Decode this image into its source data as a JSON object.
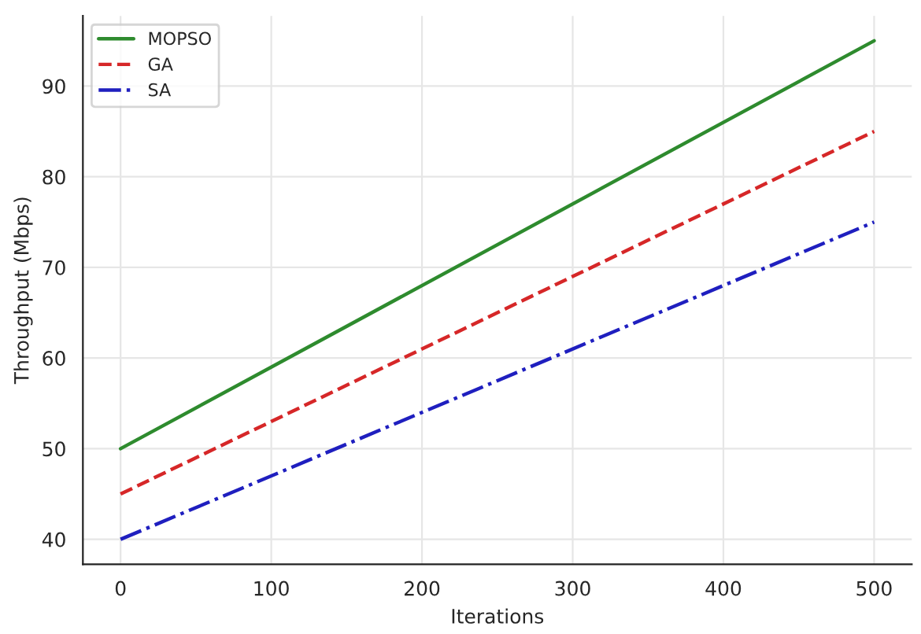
{
  "chart_data": {
    "type": "line",
    "xlabel": "Iterations",
    "ylabel": "Throughput (Mbps)",
    "x": [
      0,
      500
    ],
    "series": [
      {
        "name": "MOPSO",
        "color": "#2e8b2e",
        "values": [
          50,
          95
        ],
        "line_style": "solid"
      },
      {
        "name": "GA",
        "color": "#d62728",
        "values": [
          45,
          85
        ],
        "line_style": "dashed"
      },
      {
        "name": "SA",
        "color": "#1f1fbf",
        "values": [
          40,
          75
        ],
        "line_style": "dashdot"
      }
    ],
    "xlim": [
      -25,
      525
    ],
    "xticks": [
      0,
      100,
      200,
      300,
      400,
      500
    ],
    "ylim": [
      37.25,
      97.75
    ],
    "yticks": [
      40,
      50,
      60,
      70,
      80,
      90
    ],
    "grid": true,
    "legend": "top left",
    "marker": "none"
  }
}
